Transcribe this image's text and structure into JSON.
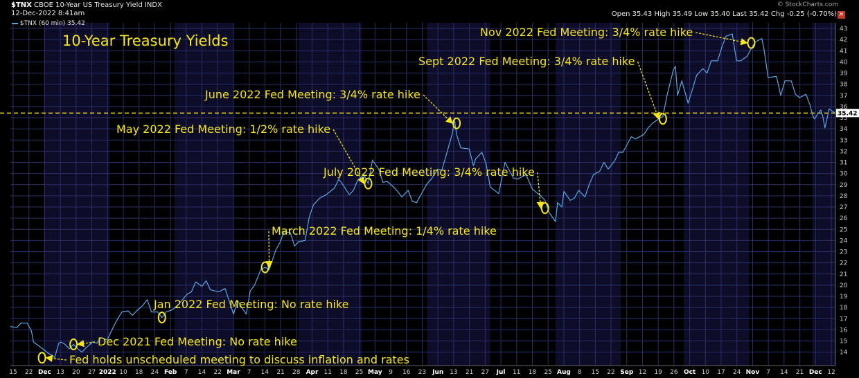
{
  "header": {
    "symbol": "$TNX",
    "description": "CBOE 10-Year US Treasury Yield INDX",
    "date": "12-Dec-2022 8:41am",
    "ohlc": "Open 35.43  High 35.49  Low 35.40  Last 35.42  Chg -0.25 (-0.70%)",
    "copyright": "© StockCharts.com",
    "legend": "$TNX (60 min) 35.42"
  },
  "colors": {
    "background": "#000000",
    "line": "#5aa6e6",
    "grid": "#2a2f66",
    "annotation": "#f5e51e",
    "axis_text": "#cccccc"
  },
  "chart_data": {
    "type": "line",
    "title": "10-Year Treasury Yields",
    "last_value_label": "35.42",
    "last_value": 35.42,
    "reference_line_value": 35.42,
    "ylim": [
      12.8,
      43.5
    ],
    "y_ticks": [
      14,
      15,
      16,
      17,
      18,
      19,
      20,
      21,
      22,
      23,
      24,
      25,
      26,
      27,
      28,
      29,
      30,
      31,
      32,
      33,
      34,
      35,
      36,
      37,
      38,
      39,
      40,
      41,
      42,
      43
    ],
    "x_ticks": [
      "15",
      "22",
      "Dec",
      "13",
      "20",
      "27",
      "2022",
      "10",
      "18",
      "24",
      "Feb",
      "7",
      "14",
      "22",
      "Mar",
      "7",
      "14",
      "21",
      "28",
      "Apr",
      "11",
      "18",
      "25",
      "May",
      "9",
      "16",
      "23",
      "Jun",
      "13",
      "21",
      "27",
      "Jul",
      "11",
      "18",
      "25",
      "Aug",
      "8",
      "15",
      "22",
      "Sep",
      "12",
      "19",
      "26",
      "Oct",
      "10",
      "17",
      "24",
      "Nov",
      "7",
      "14",
      "21",
      "Dec",
      "12"
    ],
    "x_date_range": [
      "2021-11-15",
      "2022-12-12"
    ],
    "series": [
      {
        "points": [
          [
            "2021-11-15",
            16.3
          ],
          [
            "2021-11-18",
            16.2
          ],
          [
            "2021-11-20",
            16.6
          ],
          [
            "2021-11-23",
            16.6
          ],
          [
            "2021-11-25",
            15.9
          ],
          [
            "2021-11-26",
            14.9
          ],
          [
            "2021-11-29",
            14.5
          ],
          [
            "2021-12-01",
            14.2
          ],
          [
            "2021-12-03",
            13.9
          ],
          [
            "2021-12-05",
            13.7
          ],
          [
            "2021-12-06",
            13.5
          ],
          [
            "2021-12-08",
            14.8
          ],
          [
            "2021-12-09",
            14.9
          ],
          [
            "2021-12-11",
            14.7
          ],
          [
            "2021-12-13",
            14.3
          ],
          [
            "2021-12-15",
            14.7
          ],
          [
            "2021-12-17",
            14.3
          ],
          [
            "2021-12-19",
            14.0
          ],
          [
            "2021-12-21",
            14.4
          ],
          [
            "2021-12-24",
            14.9
          ],
          [
            "2021-12-26",
            14.8
          ],
          [
            "2021-12-28",
            15.3
          ],
          [
            "2021-12-31",
            15.1
          ],
          [
            "2022-01-03",
            16.3
          ],
          [
            "2022-01-05",
            17.0
          ],
          [
            "2022-01-07",
            17.6
          ],
          [
            "2022-01-10",
            17.7
          ],
          [
            "2022-01-12",
            17.3
          ],
          [
            "2022-01-14",
            17.7
          ],
          [
            "2022-01-17",
            18.2
          ],
          [
            "2022-01-19",
            18.7
          ],
          [
            "2022-01-21",
            17.6
          ],
          [
            "2022-01-24",
            17.6
          ],
          [
            "2022-01-26",
            17.1
          ],
          [
            "2022-01-28",
            17.6
          ],
          [
            "2022-01-31",
            17.8
          ],
          [
            "2022-02-03",
            18.3
          ],
          [
            "2022-02-07",
            19.2
          ],
          [
            "2022-02-09",
            19.4
          ],
          [
            "2022-02-11",
            20.3
          ],
          [
            "2022-02-14",
            19.9
          ],
          [
            "2022-02-16",
            20.4
          ],
          [
            "2022-02-18",
            19.6
          ],
          [
            "2022-02-22",
            19.4
          ],
          [
            "2022-02-25",
            19.7
          ],
          [
            "2022-03-01",
            17.4
          ],
          [
            "2022-03-03",
            18.6
          ],
          [
            "2022-03-07",
            17.4
          ],
          [
            "2022-03-09",
            19.5
          ],
          [
            "2022-03-11",
            20.0
          ],
          [
            "2022-03-14",
            21.4
          ],
          [
            "2022-03-16",
            21.6
          ],
          [
            "2022-03-18",
            21.4
          ],
          [
            "2022-03-21",
            23.1
          ],
          [
            "2022-03-23",
            23.8
          ],
          [
            "2022-03-25",
            24.8
          ],
          [
            "2022-03-28",
            24.7
          ],
          [
            "2022-03-30",
            23.5
          ],
          [
            "2022-04-01",
            23.9
          ],
          [
            "2022-04-04",
            24.0
          ],
          [
            "2022-04-06",
            26.1
          ],
          [
            "2022-04-08",
            27.2
          ],
          [
            "2022-04-11",
            27.8
          ],
          [
            "2022-04-14",
            28.1
          ],
          [
            "2022-04-18",
            28.7
          ],
          [
            "2022-04-20",
            29.5
          ],
          [
            "2022-04-22",
            29.0
          ],
          [
            "2022-04-25",
            28.1
          ],
          [
            "2022-04-27",
            28.5
          ],
          [
            "2022-04-29",
            29.4
          ],
          [
            "2022-05-02",
            29.9
          ],
          [
            "2022-05-04",
            29.1
          ],
          [
            "2022-05-06",
            31.2
          ],
          [
            "2022-05-09",
            30.4
          ],
          [
            "2022-05-11",
            29.2
          ],
          [
            "2022-05-13",
            29.3
          ],
          [
            "2022-05-16",
            28.8
          ],
          [
            "2022-05-18",
            28.4
          ],
          [
            "2022-05-20",
            27.9
          ],
          [
            "2022-05-23",
            28.5
          ],
          [
            "2022-05-25",
            27.5
          ],
          [
            "2022-05-27",
            27.4
          ],
          [
            "2022-06-01",
            29.1
          ],
          [
            "2022-06-03",
            29.5
          ],
          [
            "2022-06-06",
            30.4
          ],
          [
            "2022-06-08",
            30.3
          ],
          [
            "2022-06-10",
            31.6
          ],
          [
            "2022-06-13",
            33.6
          ],
          [
            "2022-06-14",
            34.8
          ],
          [
            "2022-06-15",
            33.5
          ],
          [
            "2022-06-17",
            32.3
          ],
          [
            "2022-06-21",
            32.2
          ],
          [
            "2022-06-23",
            30.7
          ],
          [
            "2022-06-24",
            31.3
          ],
          [
            "2022-06-27",
            31.9
          ],
          [
            "2022-06-29",
            30.9
          ],
          [
            "2022-07-01",
            28.8
          ],
          [
            "2022-07-05",
            28.2
          ],
          [
            "2022-07-07",
            30.1
          ],
          [
            "2022-07-08",
            31.0
          ],
          [
            "2022-07-12",
            29.6
          ],
          [
            "2022-07-14",
            29.5
          ],
          [
            "2022-07-18",
            29.9
          ],
          [
            "2022-07-21",
            28.6
          ],
          [
            "2022-07-25",
            28.0
          ],
          [
            "2022-07-27",
            27.6
          ],
          [
            "2022-07-29",
            26.5
          ],
          [
            "2022-08-01",
            25.7
          ],
          [
            "2022-08-02",
            27.4
          ],
          [
            "2022-08-04",
            27.0
          ],
          [
            "2022-08-05",
            28.4
          ],
          [
            "2022-08-08",
            27.6
          ],
          [
            "2022-08-10",
            27.8
          ],
          [
            "2022-08-12",
            28.5
          ],
          [
            "2022-08-15",
            27.9
          ],
          [
            "2022-08-17",
            29.0
          ],
          [
            "2022-08-19",
            29.9
          ],
          [
            "2022-08-22",
            30.2
          ],
          [
            "2022-08-24",
            31.0
          ],
          [
            "2022-08-26",
            30.4
          ],
          [
            "2022-08-29",
            31.1
          ],
          [
            "2022-08-31",
            31.9
          ],
          [
            "2022-09-02",
            31.9
          ],
          [
            "2022-09-06",
            33.3
          ],
          [
            "2022-09-08",
            33.1
          ],
          [
            "2022-09-12",
            33.5
          ],
          [
            "2022-09-14",
            34.1
          ],
          [
            "2022-09-16",
            34.5
          ],
          [
            "2022-09-19",
            34.9
          ],
          [
            "2022-09-21",
            35.1
          ],
          [
            "2022-09-23",
            37.0
          ],
          [
            "2022-09-26",
            39.3
          ],
          [
            "2022-09-27",
            39.6
          ],
          [
            "2022-09-28",
            37.0
          ],
          [
            "2022-09-30",
            38.3
          ],
          [
            "2022-10-03",
            36.3
          ],
          [
            "2022-10-05",
            37.5
          ],
          [
            "2022-10-07",
            38.8
          ],
          [
            "2022-10-10",
            39.4
          ],
          [
            "2022-10-12",
            39.0
          ],
          [
            "2022-10-14",
            40.1
          ],
          [
            "2022-10-17",
            40.1
          ],
          [
            "2022-10-19",
            41.3
          ],
          [
            "2022-10-21",
            42.3
          ],
          [
            "2022-10-24",
            42.5
          ],
          [
            "2022-10-26",
            40.1
          ],
          [
            "2022-10-28",
            40.1
          ],
          [
            "2022-10-31",
            40.5
          ],
          [
            "2022-11-02",
            41.2
          ],
          [
            "2022-11-04",
            41.8
          ],
          [
            "2022-11-07",
            42.1
          ],
          [
            "2022-11-08",
            41.2
          ],
          [
            "2022-11-10",
            38.6
          ],
          [
            "2022-11-14",
            38.7
          ],
          [
            "2022-11-16",
            37.0
          ],
          [
            "2022-11-18",
            38.3
          ],
          [
            "2022-11-21",
            38.3
          ],
          [
            "2022-11-23",
            37.1
          ],
          [
            "2022-11-25",
            36.8
          ],
          [
            "2022-11-28",
            37.1
          ],
          [
            "2022-11-30",
            36.1
          ],
          [
            "2022-12-01",
            35.3
          ],
          [
            "2022-12-02",
            34.9
          ],
          [
            "2022-12-05",
            35.7
          ],
          [
            "2022-12-06",
            35.1
          ],
          [
            "2022-12-07",
            34.1
          ],
          [
            "2022-12-08",
            34.9
          ],
          [
            "2022-12-09",
            35.8
          ],
          [
            "2022-12-12",
            35.4
          ]
        ]
      }
    ],
    "annotations": [
      {
        "text": "Fed holds unscheduled meeting to discuss inflation and rates",
        "date": "2021-11-30",
        "value": 13.5
      },
      {
        "text": "Dec 2021 Fed Meeting: No rate hike",
        "date": "2021-12-15",
        "value": 14.7
      },
      {
        "text": "Jan 2022 Fed Meeting: No rate hike",
        "date": "2022-01-26",
        "value": 17.1
      },
      {
        "text": "March 2022 Fed Meeting: 1/4% rate hike",
        "date": "2022-03-16",
        "value": 21.6
      },
      {
        "text": "May 2022 Fed Meeting: 1/2% rate hike",
        "date": "2022-05-04",
        "value": 29.1
      },
      {
        "text": "June 2022 Fed Meeting: 3/4% rate hike",
        "date": "2022-06-15",
        "value": 34.5
      },
      {
        "text": "July 2022 Fed Meeting: 3/4% rate hike",
        "date": "2022-07-27",
        "value": 26.9
      },
      {
        "text": "Sept 2022 Fed Meeting: 3/4% rate hike",
        "date": "2022-09-21",
        "value": 34.9
      },
      {
        "text": "Nov 2022 Fed Meeting: 3/4% rate hike",
        "date": "2022-11-02",
        "value": 41.7
      }
    ]
  }
}
